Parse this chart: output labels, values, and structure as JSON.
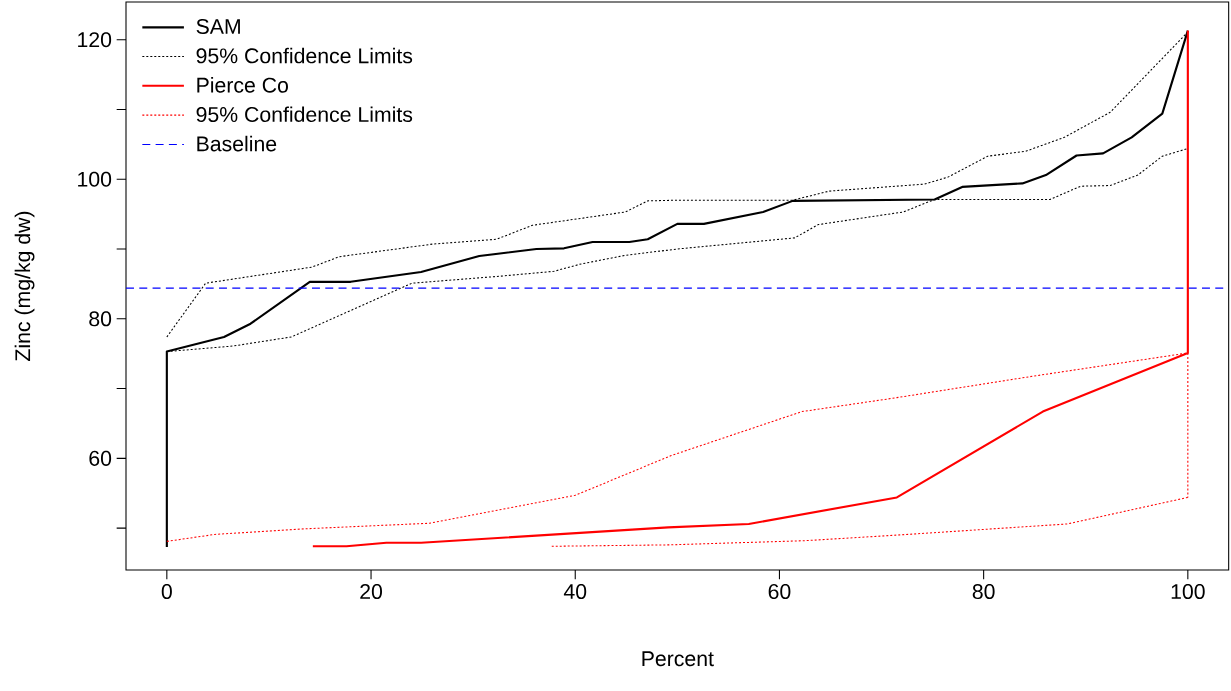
{
  "chart_data": {
    "type": "line",
    "xlabel": "Percent",
    "ylabel": "Zinc (mg/kg dw)",
    "xlim": [
      -4,
      104
    ],
    "ylim": [
      44,
      125.4
    ],
    "xticks": [
      0,
      20,
      40,
      60,
      80,
      100
    ],
    "yticks": [
      {
        "value": 50,
        "label": null
      },
      60,
      {
        "value": 70,
        "label": null
      },
      80,
      {
        "value": 90,
        "label": null
      },
      100,
      {
        "value": 110,
        "label": null
      },
      120
    ],
    "grid": false,
    "legend": "top left",
    "marker": "none",
    "series": [
      {
        "name": "SAM",
        "color": "#000000",
        "line_style": "solid",
        "x": [
          0,
          0,
          5.6,
          8.2,
          14.0,
          18.0,
          24.9,
          30.6,
          36.2,
          38.9,
          41.7,
          45.3,
          47.1,
          50.0,
          52.6,
          58.4,
          61.3,
          75.2,
          77.9,
          83.8,
          86.1,
          89.1,
          91.7,
          94.5,
          97.5,
          100
        ],
        "values": [
          47.3,
          75.3,
          77.4,
          79.3,
          85.3,
          85.3,
          86.7,
          89.0,
          90.0,
          90.1,
          91.0,
          91.0,
          91.4,
          93.6,
          93.6,
          95.3,
          96.9,
          97.1,
          98.9,
          99.4,
          100.6,
          103.4,
          103.7,
          106.0,
          109.4,
          121.3
        ]
      },
      {
        "name": "95% Confidence Limits",
        "color": "#000000",
        "line_style": "dotted",
        "x": [
          0,
          3.8,
          14.2,
          16.9,
          26.0,
          32.3,
          35.8,
          44.9,
          47.1,
          50.1,
          61.3,
          64.9,
          74.2,
          76.5,
          80.4,
          84.1,
          87.9,
          92.4,
          100
        ],
        "values": [
          77.4,
          85.1,
          87.4,
          88.9,
          90.7,
          91.4,
          93.4,
          95.3,
          96.9,
          97.0,
          97.0,
          98.3,
          99.3,
          100.3,
          103.3,
          104.0,
          106.0,
          109.6,
          121.1
        ]
      },
      {
        "color": "#000000",
        "line_style": "dotted",
        "x": [
          0,
          6.5,
          12.2,
          24.0,
          32.6,
          37.9,
          40.4,
          44.9,
          50.0,
          61.5,
          63.8,
          72.1,
          75.2,
          86.5,
          89.5,
          92.4,
          95.1,
          97.5,
          100
        ],
        "values": [
          75.3,
          76.1,
          77.4,
          85.1,
          86.1,
          86.8,
          87.8,
          89.1,
          90.0,
          91.6,
          93.5,
          95.3,
          97.1,
          97.1,
          99.0,
          99.1,
          100.6,
          103.3,
          104.4
        ]
      },
      {
        "name": "Pierce Co",
        "color": "#ff0000",
        "line_style": "solid",
        "x": [
          14.3,
          17.6,
          21.5,
          24.9,
          49.1,
          57.0,
          71.5,
          85.8,
          100,
          100
        ],
        "values": [
          47.4,
          47.4,
          47.9,
          47.9,
          50.1,
          50.6,
          54.4,
          66.7,
          75.1,
          121.3
        ]
      },
      {
        "name": "95% Confidence Limits",
        "color": "#ff0000",
        "line_style": "dotted",
        "x": [
          0,
          4.7,
          13.5,
          25.7,
          40.0,
          49.4,
          62.2,
          71.5,
          84.5,
          100,
          100
        ],
        "values": [
          48.1,
          49.1,
          49.9,
          50.7,
          54.7,
          60.4,
          66.7,
          68.7,
          71.7,
          75.1,
          54.4
        ]
      },
      {
        "color": "#ff0000",
        "line_style": "dotted",
        "x": [
          37.7,
          49.1,
          62.5,
          71.5,
          88.2,
          100
        ],
        "values": [
          47.4,
          47.6,
          48.2,
          49.0,
          50.6,
          54.4
        ]
      }
    ],
    "ref_lines": [
      {
        "axis": "y",
        "value": 84.4,
        "label": "Baseline",
        "color": "#0000ff",
        "line_style": "dashed"
      }
    ]
  }
}
